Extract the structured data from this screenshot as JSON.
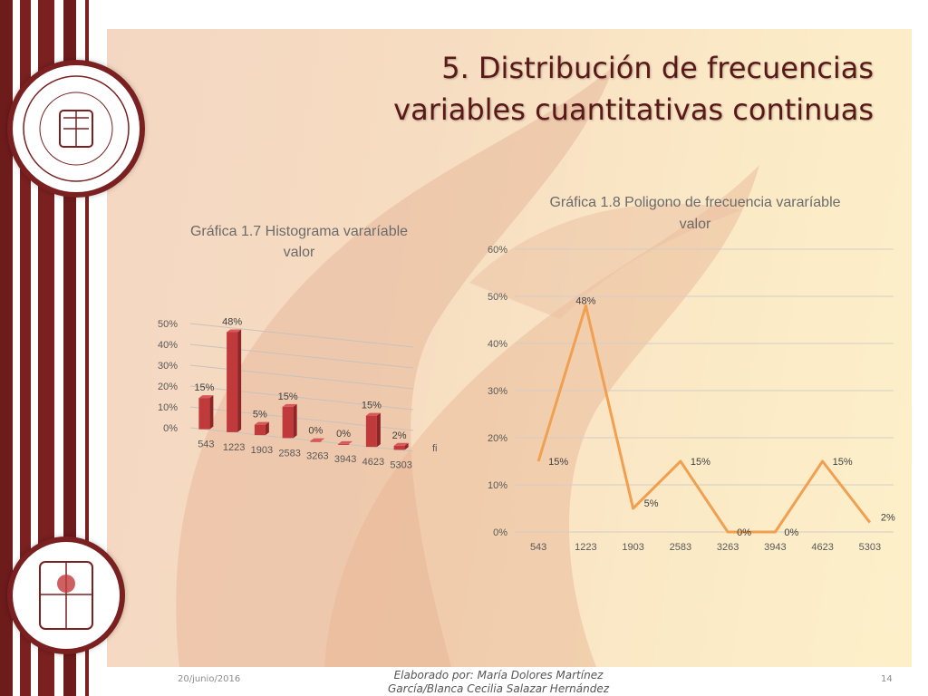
{
  "slide": {
    "title_line1": "5. Distribución de frecuencias",
    "title_line2": "variables cuantitativas continuas",
    "footer_date": "20/junio/2016",
    "footer_author_line1": "Elaborado por: María Dolores Martínez",
    "footer_author_line2": "García/Blanca Cecilia Salazar Hernández",
    "page_number": "14",
    "colors": {
      "maroon": "#7a2020",
      "bar": "#c0393b",
      "line": "#f0a050"
    }
  },
  "chart_data": [
    {
      "type": "bar",
      "title": "Gráfica 1.7 Histograma vararíable valor",
      "title_lines": [
        "Gráfica 1.7 Histograma vararíable",
        "valor"
      ],
      "categories": [
        "543",
        "1223",
        "1903",
        "2583",
        "3263",
        "3943",
        "4623",
        "5303"
      ],
      "series": [
        {
          "name": "fi",
          "values": [
            15,
            48,
            5,
            15,
            0,
            0,
            15,
            2
          ]
        }
      ],
      "data_labels": [
        "15%",
        "48%",
        "5%",
        "15%",
        "0%",
        "0%",
        "15%",
        "2%"
      ],
      "yticks": [
        "0%",
        "10%",
        "20%",
        "30%",
        "40%",
        "50%"
      ],
      "ylim": [
        0,
        50
      ],
      "grid": true,
      "legend": "right"
    },
    {
      "type": "line",
      "title": "Gráfica 1.8 Poligono de frecuencia vararíable valor",
      "title_lines": [
        "Gráfica 1.8  Poligono de frecuencia vararíable",
        "valor"
      ],
      "categories": [
        "543",
        "1223",
        "1903",
        "2583",
        "3263",
        "3943",
        "4623",
        "5303"
      ],
      "series": [
        {
          "values": [
            15,
            48,
            5,
            15,
            0,
            0,
            15,
            2
          ]
        }
      ],
      "data_labels": [
        "15%",
        "48%",
        "5%",
        "15%",
        "0%",
        "0%",
        "15%",
        "2%"
      ],
      "yticks": [
        "0%",
        "10%",
        "20%",
        "30%",
        "40%",
        "50%",
        "60%"
      ],
      "ylim": [
        0,
        60
      ],
      "grid": true
    }
  ]
}
